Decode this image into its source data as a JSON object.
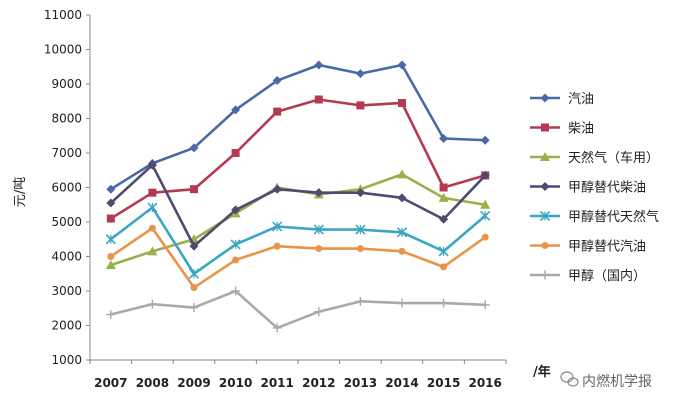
{
  "chart_data": {
    "type": "line",
    "title": "",
    "xlabel": "/年",
    "ylabel": "元/吨",
    "categories": [
      "2007",
      "2008",
      "2009",
      "2010",
      "2011",
      "2012",
      "2013",
      "2014",
      "2015",
      "2016"
    ],
    "ylim": [
      1000,
      11000
    ],
    "yticks": [
      1000,
      2000,
      3000,
      4000,
      5000,
      6000,
      7000,
      8000,
      9000,
      10000,
      11000
    ],
    "grid": false,
    "legend_position": "right",
    "series": [
      {
        "name": "汽油",
        "color": "#4a6aa5",
        "marker": "diamond",
        "values": [
          5950,
          6700,
          7150,
          8250,
          9100,
          9550,
          9300,
          9550,
          7420,
          7370
        ]
      },
      {
        "name": "柴油",
        "color": "#b43a52",
        "marker": "square",
        "values": [
          5100,
          5850,
          5950,
          7000,
          8200,
          8550,
          8380,
          8450,
          6000,
          6350
        ]
      },
      {
        "name": "天然气（车用）",
        "color": "#9ab04a",
        "marker": "triangle",
        "values": [
          3750,
          4150,
          4500,
          5250,
          6000,
          5800,
          5950,
          6380,
          5700,
          5500
        ]
      },
      {
        "name": "甲醇替代柴油",
        "color": "#4e4a72",
        "marker": "diamond",
        "values": [
          5550,
          6650,
          4300,
          5350,
          5950,
          5850,
          5850,
          5700,
          5080,
          6350
        ]
      },
      {
        "name": "甲醇替代天然气",
        "color": "#3aa6c4",
        "marker": "cross",
        "values": [
          4500,
          5420,
          3500,
          4350,
          4870,
          4780,
          4780,
          4700,
          4150,
          5180
        ]
      },
      {
        "name": "甲醇替代汽油",
        "color": "#e8944a",
        "marker": "circle",
        "values": [
          4000,
          4820,
          3100,
          3900,
          4300,
          4230,
          4230,
          4150,
          3700,
          4560
        ]
      },
      {
        "name": "甲醇（国内）",
        "color": "#a9a9a9",
        "marker": "plus",
        "values": [
          2320,
          2620,
          2520,
          3000,
          1930,
          2400,
          2700,
          2650,
          2650,
          2600
        ]
      }
    ]
  },
  "watermark": {
    "text": "内燃机学报",
    "icon": "wechat-icon"
  }
}
